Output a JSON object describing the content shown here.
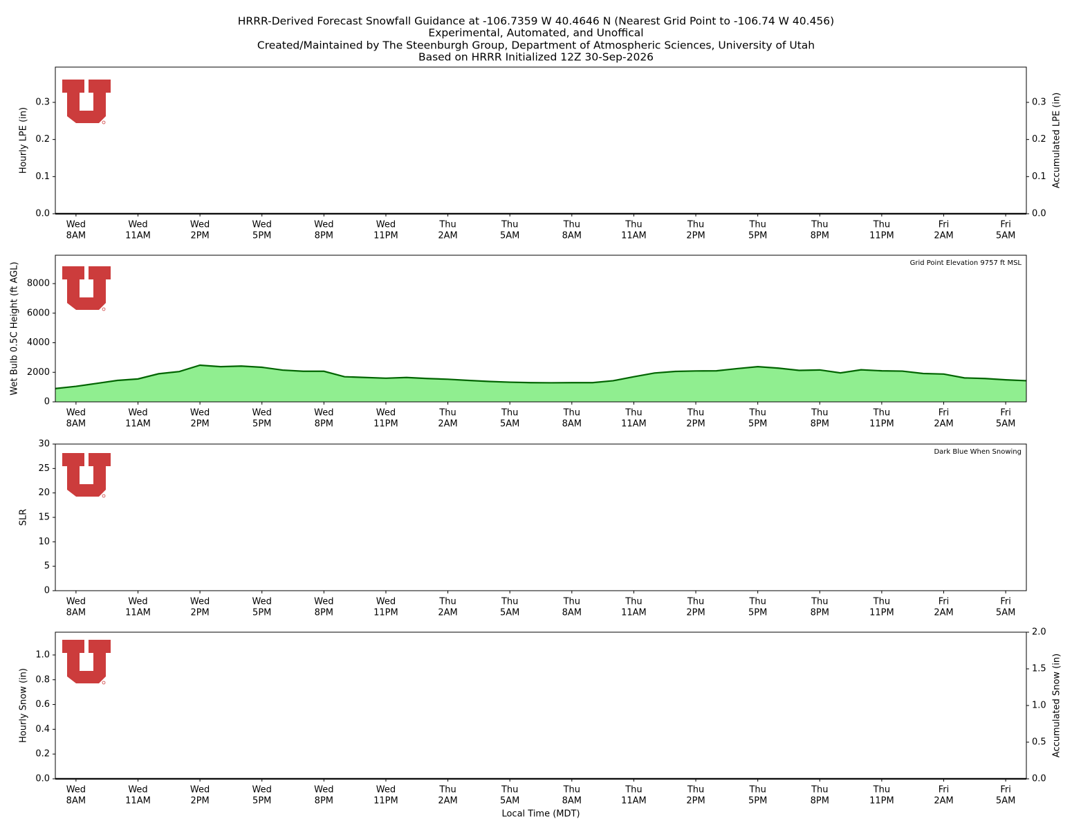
{
  "title_lines": [
    "HRRR-Derived Forecast Snowfall Guidance at -106.7359 W 40.4646 N (Nearest Grid Point to -106.74 W 40.456)",
    "Experimental, Automated, and Unoffical",
    "Created/Maintained by The Steenburgh Group, Department of Atmospheric Sciences, University of Utah",
    "Based on HRRR Initialized 12Z 30-Sep-2026"
  ],
  "x_label": "Local Time (MDT)",
  "chart_data": [
    {
      "type": "line",
      "ylabel": "Hourly LPE (in)",
      "y2label": "Accumulated LPE (in)",
      "categories": [
        null,
        [
          "Wed",
          "8AM"
        ],
        null,
        null,
        [
          "Wed",
          "11AM"
        ],
        null,
        null,
        [
          "Wed",
          "2PM"
        ],
        null,
        null,
        [
          "Wed",
          "5PM"
        ],
        null,
        null,
        [
          "Wed",
          "8PM"
        ],
        null,
        null,
        [
          "Wed",
          "11PM"
        ],
        null,
        null,
        [
          "Thu",
          "2AM"
        ],
        null,
        null,
        [
          "Thu",
          "5AM"
        ],
        null,
        null,
        [
          "Thu",
          "8AM"
        ],
        null,
        null,
        [
          "Thu",
          "11AM"
        ],
        null,
        null,
        [
          "Thu",
          "2PM"
        ],
        null,
        null,
        [
          "Thu",
          "5PM"
        ],
        null,
        null,
        [
          "Thu",
          "8PM"
        ],
        null,
        null,
        [
          "Thu",
          "11PM"
        ],
        null,
        null,
        [
          "Fri",
          "2AM"
        ],
        null,
        null,
        [
          "Fri",
          "5AM"
        ],
        null
      ],
      "series": [
        {
          "color": "#1f1f1f",
          "values": [
            0,
            0,
            0,
            0,
            0,
            0,
            0,
            0,
            0,
            0,
            0,
            0,
            0,
            0,
            0,
            0,
            0,
            0,
            0,
            0,
            0,
            0,
            0,
            0,
            0,
            0,
            0,
            0,
            0,
            0,
            0,
            0,
            0,
            0,
            0,
            0,
            0,
            0,
            0,
            0,
            0,
            0,
            0,
            0,
            0,
            0,
            0,
            0
          ]
        },
        {
          "color": "#1f1f1f",
          "axis": "y2",
          "values": [
            0,
            0,
            0,
            0,
            0,
            0,
            0,
            0,
            0,
            0,
            0,
            0,
            0,
            0,
            0,
            0,
            0,
            0,
            0,
            0,
            0,
            0,
            0,
            0,
            0,
            0,
            0,
            0,
            0,
            0,
            0,
            0,
            0,
            0,
            0,
            0,
            0,
            0,
            0,
            0,
            0,
            0,
            0,
            0,
            0,
            0,
            0,
            0
          ]
        }
      ],
      "ylim": [
        0,
        0.395
      ],
      "yticks": [
        {
          "value": 0,
          "label": "0.0"
        },
        0.1,
        0.2,
        0.3
      ],
      "y2lim": [
        0,
        0.395
      ],
      "y2ticks": [
        {
          "value": 0,
          "label": "0.0"
        },
        0.1,
        0.2,
        0.3
      ]
    },
    {
      "type": "area",
      "ylabel": "Wet Bulb 0.5C Height (ft AGL)",
      "annotation": "Grid Point Elevation 9757 ft MSL",
      "categories": [
        null,
        [
          "Wed",
          "8AM"
        ],
        null,
        null,
        [
          "Wed",
          "11AM"
        ],
        null,
        null,
        [
          "Wed",
          "2PM"
        ],
        null,
        null,
        [
          "Wed",
          "5PM"
        ],
        null,
        null,
        [
          "Wed",
          "8PM"
        ],
        null,
        null,
        [
          "Wed",
          "11PM"
        ],
        null,
        null,
        [
          "Thu",
          "2AM"
        ],
        null,
        null,
        [
          "Thu",
          "5AM"
        ],
        null,
        null,
        [
          "Thu",
          "8AM"
        ],
        null,
        null,
        [
          "Thu",
          "11AM"
        ],
        null,
        null,
        [
          "Thu",
          "2PM"
        ],
        null,
        null,
        [
          "Thu",
          "5PM"
        ],
        null,
        null,
        [
          "Thu",
          "8PM"
        ],
        null,
        null,
        [
          "Thu",
          "11PM"
        ],
        null,
        null,
        [
          "Fri",
          "2AM"
        ],
        null,
        null,
        [
          "Fri",
          "5AM"
        ],
        null
      ],
      "series": [
        {
          "color": "#006400",
          "fill": "#90ee90",
          "values": [
            900,
            1050,
            1250,
            1450,
            1550,
            1900,
            2050,
            2480,
            2380,
            2420,
            2340,
            2150,
            2070,
            2070,
            1700,
            1650,
            1600,
            1650,
            1580,
            1530,
            1450,
            1380,
            1330,
            1300,
            1290,
            1300,
            1300,
            1430,
            1700,
            1950,
            2060,
            2090,
            2100,
            2250,
            2380,
            2280,
            2130,
            2160,
            1960,
            2170,
            2100,
            2080,
            1920,
            1880,
            1620,
            1580,
            1490,
            1430
          ]
        }
      ],
      "ylim": [
        0,
        9920
      ],
      "yticks": [
        0,
        2000,
        4000,
        6000,
        8000
      ]
    },
    {
      "type": "bar",
      "ylabel": "SLR",
      "annotation": "Dark Blue When Snowing",
      "categories": [
        null,
        [
          "Wed",
          "8AM"
        ],
        null,
        null,
        [
          "Wed",
          "11AM"
        ],
        null,
        null,
        [
          "Wed",
          "2PM"
        ],
        null,
        null,
        [
          "Wed",
          "5PM"
        ],
        null,
        null,
        [
          "Wed",
          "8PM"
        ],
        null,
        null,
        [
          "Wed",
          "11PM"
        ],
        null,
        null,
        [
          "Thu",
          "2AM"
        ],
        null,
        null,
        [
          "Thu",
          "5AM"
        ],
        null,
        null,
        [
          "Thu",
          "8AM"
        ],
        null,
        null,
        [
          "Thu",
          "11AM"
        ],
        null,
        null,
        [
          "Thu",
          "2PM"
        ],
        null,
        null,
        [
          "Thu",
          "5PM"
        ],
        null,
        null,
        [
          "Thu",
          "8PM"
        ],
        null,
        null,
        [
          "Thu",
          "11PM"
        ],
        null,
        null,
        [
          "Fri",
          "2AM"
        ],
        null,
        null,
        [
          "Fri",
          "5AM"
        ],
        null
      ],
      "ylim": [
        0,
        30
      ],
      "yticks": [
        0,
        5,
        10,
        15,
        20,
        25,
        30
      ]
    },
    {
      "type": "line",
      "ylabel": "Hourly Snow (in)",
      "y2label": "Accumulated Snow (in)",
      "categories": [
        null,
        [
          "Wed",
          "8AM"
        ],
        null,
        null,
        [
          "Wed",
          "11AM"
        ],
        null,
        null,
        [
          "Wed",
          "2PM"
        ],
        null,
        null,
        [
          "Wed",
          "5PM"
        ],
        null,
        null,
        [
          "Wed",
          "8PM"
        ],
        null,
        null,
        [
          "Wed",
          "11PM"
        ],
        null,
        null,
        [
          "Thu",
          "2AM"
        ],
        null,
        null,
        [
          "Thu",
          "5AM"
        ],
        null,
        null,
        [
          "Thu",
          "8AM"
        ],
        null,
        null,
        [
          "Thu",
          "11AM"
        ],
        null,
        null,
        [
          "Thu",
          "2PM"
        ],
        null,
        null,
        [
          "Thu",
          "5PM"
        ],
        null,
        null,
        [
          "Thu",
          "8PM"
        ],
        null,
        null,
        [
          "Thu",
          "11PM"
        ],
        null,
        null,
        [
          "Fri",
          "2AM"
        ],
        null,
        null,
        [
          "Fri",
          "5AM"
        ],
        null
      ],
      "series": [
        {
          "color": "#1f1f1f",
          "values": [
            0,
            0,
            0,
            0,
            0,
            0,
            0,
            0,
            0,
            0,
            0,
            0,
            0,
            0,
            0,
            0,
            0,
            0,
            0,
            0,
            0,
            0,
            0,
            0,
            0,
            0,
            0,
            0,
            0,
            0,
            0,
            0,
            0,
            0,
            0,
            0,
            0,
            0,
            0,
            0,
            0,
            0,
            0,
            0,
            0,
            0,
            0,
            0
          ]
        },
        {
          "color": "#1f1f1f",
          "axis": "y2",
          "values": [
            0,
            0,
            0,
            0,
            0,
            0,
            0,
            0,
            0,
            0,
            0,
            0,
            0,
            0,
            0,
            0,
            0,
            0,
            0,
            0,
            0,
            0,
            0,
            0,
            0,
            0,
            0,
            0,
            0,
            0,
            0,
            0,
            0,
            0,
            0,
            0,
            0,
            0,
            0,
            0,
            0,
            0,
            0,
            0,
            0,
            0,
            0,
            0
          ]
        }
      ],
      "ylim": [
        0,
        1.184
      ],
      "yticks": [
        {
          "value": 0,
          "label": "0.0"
        },
        0.2,
        0.4,
        0.6,
        0.8,
        {
          "value": 1,
          "label": "1.0"
        }
      ],
      "y2lim": [
        0,
        2
      ],
      "y2ticks": [
        {
          "value": 0,
          "label": "0.0"
        },
        0.5,
        {
          "value": 1,
          "label": "1.0"
        },
        1.5,
        {
          "value": 2,
          "label": "2.0"
        }
      ]
    }
  ]
}
